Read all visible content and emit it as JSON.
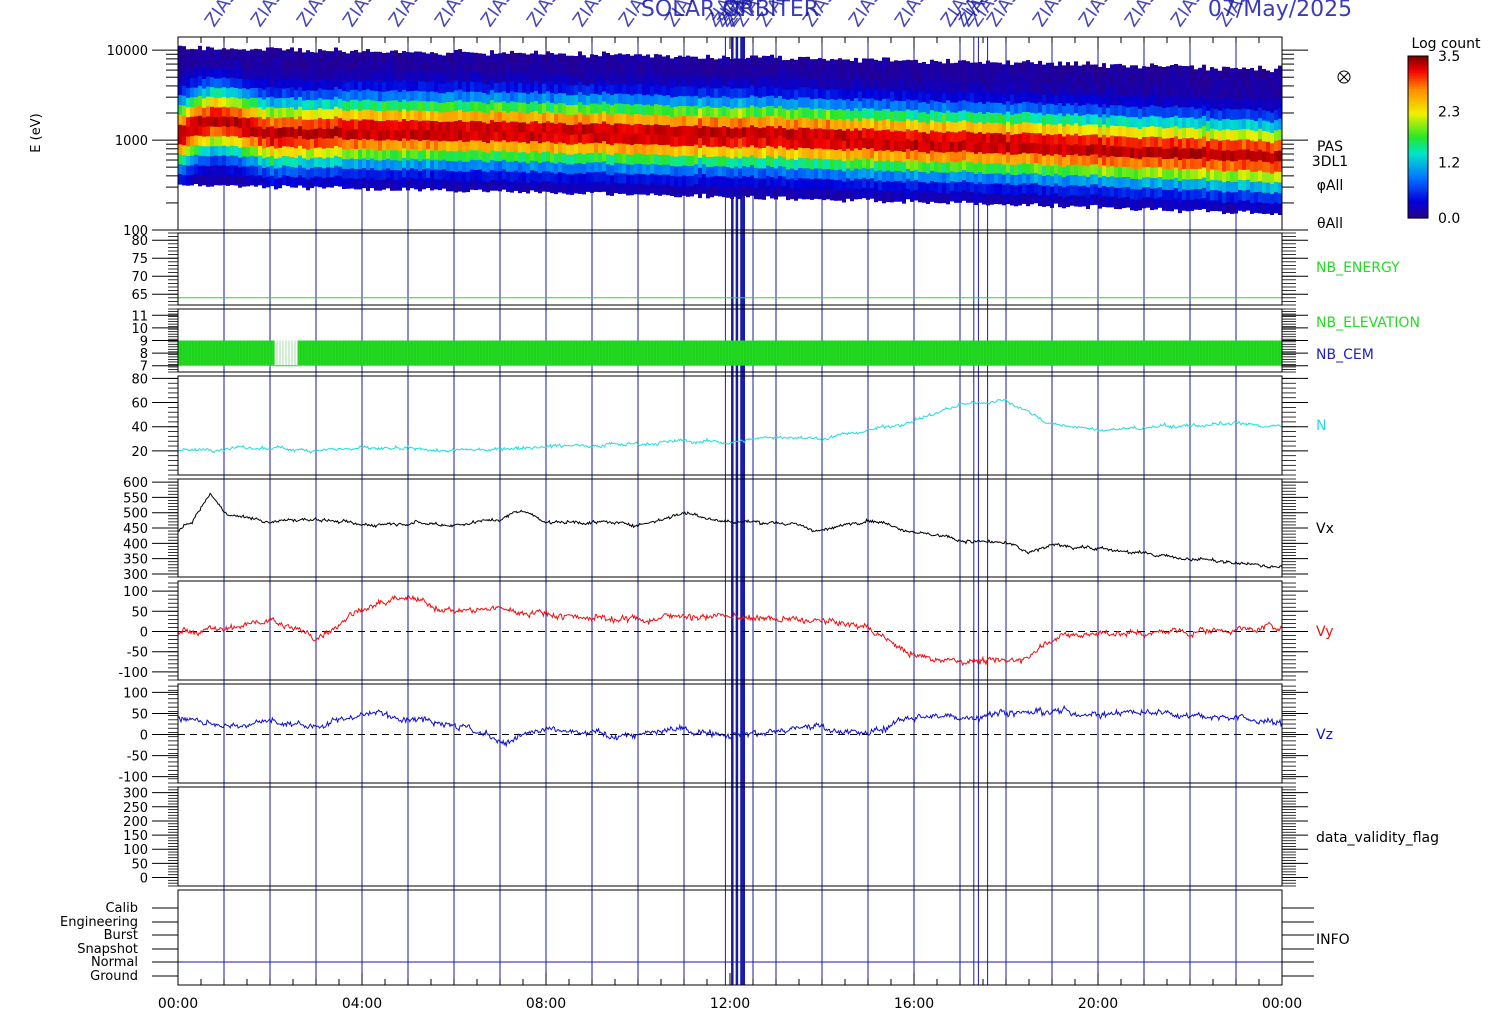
{
  "header": {
    "title": "SOLAR ORBITER",
    "date": "07/May/2025",
    "zia_marker": "ZIAS"
  },
  "chart_data": [
    {
      "type": "heatmap",
      "name": "PAS energy spectrogram",
      "ylabel": "E (eV)",
      "yscale": "log",
      "ylim": [
        100,
        14000
      ],
      "yticks": [
        "10000",
        "1000",
        "100"
      ],
      "ytick_values": [
        10000,
        1000,
        100
      ],
      "right_labels": [
        "PAS",
        "3DL1",
        "φAll",
        "θAll"
      ],
      "colorbar": {
        "title": "Log count",
        "range": [
          0.0,
          3.5
        ],
        "ticks": [
          "3.5",
          "2.3",
          "1.2",
          "0.0"
        ],
        "tick_values": [
          3.5,
          2.3,
          1.2,
          0.0
        ]
      },
      "peak_energy_trend_eV": {
        "hours": [
          0,
          0.7,
          2,
          4,
          7,
          10,
          12,
          14,
          16,
          18,
          20,
          22,
          24
        ],
        "values": [
          1150,
          1700,
          1150,
          1250,
          1250,
          1150,
          1150,
          1050,
          950,
          900,
          800,
          720,
          650
        ]
      }
    },
    {
      "type": "line",
      "name": "NB_ENERGY",
      "series_label": "NB_ENERGY",
      "color": "#22dd22",
      "ylim": [
        62,
        82
      ],
      "yticks": [
        "80",
        "75",
        "70",
        "65"
      ],
      "ytick_values": [
        80,
        75,
        70,
        65
      ],
      "constant_value": 64
    },
    {
      "type": "bar",
      "name": "NB_ELEVATION",
      "series_labels": [
        "NB_ELEVATION",
        "NB_CEM"
      ],
      "colors": [
        "#22dd22",
        "#2222bb"
      ],
      "ylim": [
        6.5,
        11.5
      ],
      "yticks": [
        "11",
        "10",
        "9",
        "8",
        "7"
      ],
      "ytick_values": [
        11,
        10,
        9,
        8,
        7
      ],
      "range": [
        7,
        9
      ],
      "gaps_hours": [
        [
          2.1,
          2.6
        ]
      ]
    },
    {
      "type": "line",
      "name": "N",
      "series_label": "N",
      "color": "#22dddd",
      "ylim": [
        0,
        82
      ],
      "yticks": [
        "80",
        "60",
        "40",
        "20"
      ],
      "ytick_values": [
        80,
        60,
        40,
        20
      ],
      "hours": [
        0,
        1,
        2,
        3,
        4,
        5,
        6,
        7,
        8,
        9,
        10,
        11,
        12,
        13,
        14,
        15,
        16,
        17,
        18,
        18.5,
        19,
        20,
        21,
        22,
        23,
        24
      ],
      "values": [
        20,
        22,
        22,
        21,
        22,
        21,
        20,
        22,
        24,
        25,
        26,
        28,
        27,
        32,
        30,
        37,
        45,
        58,
        62,
        52,
        42,
        37,
        39,
        41,
        42,
        40
      ]
    },
    {
      "type": "line",
      "name": "Vx",
      "series_label": "Vx",
      "color": "#000000",
      "ylim": [
        290,
        610
      ],
      "yticks": [
        "600",
        "550",
        "500",
        "450",
        "400",
        "350",
        "300"
      ],
      "ytick_values": [
        600,
        550,
        500,
        450,
        400,
        350,
        300
      ],
      "hours": [
        0,
        0.3,
        0.7,
        1,
        2,
        3,
        4,
        5,
        6,
        7,
        7.5,
        8,
        9,
        10,
        11,
        12,
        13,
        14,
        15,
        16,
        17,
        18,
        18.5,
        19,
        20,
        21,
        22,
        23,
        24
      ],
      "values": [
        440,
        470,
        560,
        500,
        470,
        480,
        460,
        470,
        460,
        480,
        510,
        470,
        470,
        460,
        500,
        470,
        470,
        440,
        480,
        440,
        410,
        400,
        370,
        395,
        385,
        365,
        350,
        335,
        320
      ]
    },
    {
      "type": "line",
      "name": "Vy",
      "series_label": "Vy",
      "color": "#ee1111",
      "ylim": [
        -120,
        125
      ],
      "yticks": [
        "100",
        "50",
        "0",
        "-50",
        "-100"
      ],
      "ytick_values": [
        100,
        50,
        0,
        -50,
        -100
      ],
      "zero_line": true,
      "hours": [
        0,
        1,
        2,
        3,
        4,
        5,
        6,
        7,
        8,
        9,
        10,
        11,
        12,
        13,
        14,
        15,
        16,
        17,
        18,
        18.5,
        19,
        20,
        21,
        22,
        23,
        24
      ],
      "values": [
        0,
        5,
        30,
        -15,
        60,
        80,
        50,
        55,
        45,
        35,
        30,
        40,
        35,
        30,
        25,
        10,
        -60,
        -70,
        -75,
        -60,
        -15,
        -5,
        -5,
        0,
        5,
        12
      ]
    },
    {
      "type": "line",
      "name": "Vz",
      "series_label": "Vz",
      "color": "#1111cc",
      "ylim": [
        -115,
        120
      ],
      "yticks": [
        "100",
        "50",
        "0",
        "-50",
        "-100"
      ],
      "ytick_values": [
        100,
        50,
        0,
        -50,
        -100
      ],
      "zero_line": true,
      "hours": [
        0,
        1,
        2,
        3,
        4,
        5,
        6,
        7,
        8,
        9,
        10,
        11,
        12,
        13,
        14,
        15,
        16,
        17,
        18,
        19,
        20,
        21,
        22,
        23,
        24
      ],
      "values": [
        40,
        20,
        30,
        20,
        50,
        45,
        30,
        -20,
        10,
        0,
        0,
        10,
        5,
        5,
        20,
        0,
        45,
        40,
        55,
        55,
        50,
        55,
        50,
        40,
        25
      ]
    },
    {
      "type": "line",
      "name": "data_validity_flag",
      "series_label": "data_validity_flag",
      "color": "#000000",
      "ylim": [
        -30,
        320
      ],
      "yticks": [
        "300",
        "250",
        "200",
        "150",
        "100",
        "50",
        "0"
      ],
      "ytick_values": [
        300,
        250,
        200,
        150,
        100,
        50,
        0
      ]
    },
    {
      "type": "table",
      "name": "INFO",
      "series_label": "INFO",
      "color": "#000000",
      "categories": [
        "Calib",
        "Engineering",
        "Burst",
        "Snapshot",
        "Normal",
        "Ground"
      ],
      "active_category": "Normal"
    }
  ],
  "time_axis": {
    "range_hours": [
      0,
      24
    ],
    "ticks": [
      "00:00",
      "04:00",
      "08:00",
      "12:00",
      "16:00",
      "20:00",
      "00:00"
    ],
    "tick_hours": [
      0,
      4,
      8,
      12,
      16,
      20,
      24
    ]
  },
  "event_markers_hours": [
    1.0,
    2.0,
    3.0,
    4.0,
    5.0,
    6.0,
    7.0,
    8.0,
    9.0,
    10.0,
    11.0,
    11.9,
    12.05,
    12.15,
    12.25,
    12.3,
    12.5,
    13.0,
    14.0,
    15.0,
    16.0,
    17.0,
    17.3,
    17.4,
    17.6,
    18.0,
    19.0,
    20.0,
    21.0,
    22.0,
    23.0
  ],
  "colors": {
    "marker": "#1a1aaa",
    "frame": "#000000",
    "zero_line": "#000000"
  }
}
